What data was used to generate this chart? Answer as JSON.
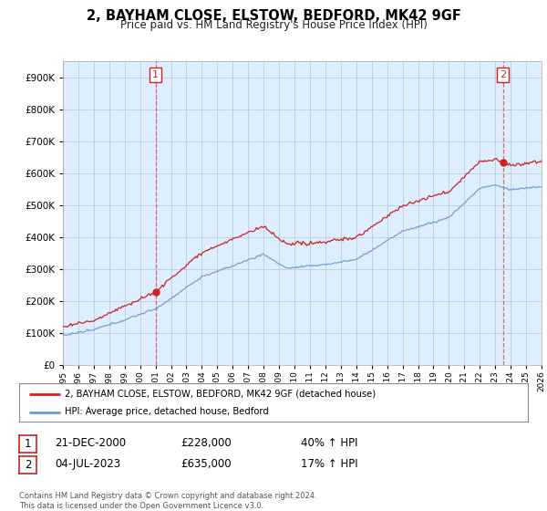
{
  "title": "2, BAYHAM CLOSE, ELSTOW, BEDFORD, MK42 9GF",
  "subtitle": "Price paid vs. HM Land Registry's House Price Index (HPI)",
  "sale1_year": 2001.0,
  "sale1_price": 228000,
  "sale1_date": "21-DEC-2000",
  "sale1_hpi_pct": "40%",
  "sale2_year": 2023.5,
  "sale2_price": 635000,
  "sale2_date": "04-JUL-2023",
  "sale2_hpi_pct": "17%",
  "legend_line1": "2, BAYHAM CLOSE, ELSTOW, BEDFORD, MK42 9GF (detached house)",
  "legend_line2": "HPI: Average price, detached house, Bedford",
  "footer": "Contains HM Land Registry data © Crown copyright and database right 2024.\nThis data is licensed under the Open Government Licence v3.0.",
  "red_color": "#cc2222",
  "blue_color": "#6699cc",
  "dashed_color": "#dd6666",
  "plot_bg": "#ddeeff",
  "fig_bg": "#ffffff",
  "grid_color": "#bbccdd",
  "ylim_max": 950000,
  "xlim_min": 1995,
  "xlim_max": 2026
}
